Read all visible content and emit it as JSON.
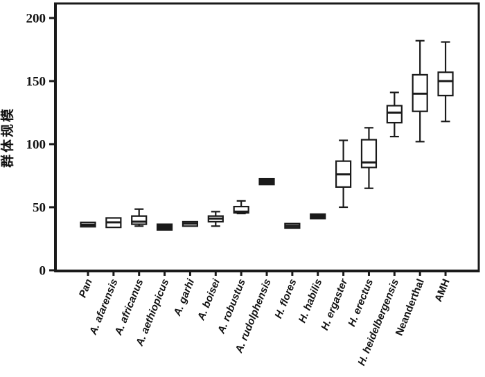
{
  "chart_data": {
    "type": "boxplot",
    "title": "",
    "xlabel": "",
    "ylabel": "群体规模",
    "ylim": [
      0,
      211
    ],
    "yticks": [
      0,
      50,
      100,
      150,
      200
    ],
    "grid": false,
    "legend": "none",
    "categories": [
      "Pan",
      "A. afarensis",
      "A. africanus",
      "A. aethiopicus",
      "A. garhi",
      "A. boisei",
      "A. robustus",
      "A. rudolphensis",
      "H. flores",
      "H. habilis",
      "H. ergaster",
      "H. erectus",
      "H. heidelbergensis",
      "Neanderthal",
      "AMH"
    ],
    "boxes": [
      {
        "label": "Pan",
        "italic": true,
        "fill": "gray",
        "low": 34.5,
        "q1": 34.5,
        "median": 36,
        "q3": 38,
        "high": 38
      },
      {
        "label": "A. afarensis",
        "italic": true,
        "fill": "white",
        "low": 34,
        "q1": 34,
        "median": 38,
        "q3": 41.5,
        "high": 41.5
      },
      {
        "label": "A. africanus",
        "italic": true,
        "fill": "white",
        "low": 35,
        "q1": 36.5,
        "median": 38.5,
        "q3": 43,
        "high": 48.5
      },
      {
        "label": "A. aethiopicus",
        "italic": true,
        "fill": "black",
        "low": 32,
        "q1": 32,
        "median": 34,
        "q3": 36.5,
        "high": 36.5
      },
      {
        "label": "A. garhi",
        "italic": true,
        "fill": "white",
        "low": 35,
        "q1": 35,
        "median": 37,
        "q3": 38.5,
        "high": 38.5
      },
      {
        "label": "A. boisei",
        "italic": true,
        "fill": "white",
        "low": 35,
        "q1": 38.5,
        "median": 41,
        "q3": 43,
        "high": 46.5
      },
      {
        "label": "A. robustus",
        "italic": true,
        "fill": "white",
        "low": 45,
        "q1": 45.5,
        "median": 46.5,
        "q3": 50.5,
        "high": 55
      },
      {
        "label": "A. rudolphensis",
        "italic": true,
        "fill": "black",
        "low": 68,
        "q1": 68,
        "median": 70,
        "q3": 72.5,
        "high": 72.5
      },
      {
        "label": "H. flores",
        "italic": true,
        "fill": "gray",
        "low": 33.5,
        "q1": 33.5,
        "median": 35,
        "q3": 37,
        "high": 37
      },
      {
        "label": "H. habilis",
        "italic": true,
        "fill": "black",
        "low": 41,
        "q1": 41,
        "median": 42.5,
        "q3": 44.5,
        "high": 44.5
      },
      {
        "label": "H. ergaster",
        "italic": true,
        "fill": "white",
        "low": 50,
        "q1": 66,
        "median": 76,
        "q3": 86.5,
        "high": 103
      },
      {
        "label": "H. erectus",
        "italic": true,
        "fill": "white",
        "low": 65,
        "q1": 81.5,
        "median": 85.5,
        "q3": 103.5,
        "high": 113
      },
      {
        "label": "H. heidelbergensis",
        "italic": true,
        "fill": "white",
        "low": 106,
        "q1": 117,
        "median": 125,
        "q3": 130.5,
        "high": 141
      },
      {
        "label": "Neanderthal",
        "italic": false,
        "fill": "white",
        "low": 102,
        "q1": 126,
        "median": 140,
        "q3": 155,
        "high": 182
      },
      {
        "label": "AMH",
        "italic": false,
        "fill": "white",
        "low": 118,
        "q1": 138.5,
        "median": 150,
        "q3": 157,
        "high": 181
      }
    ]
  },
  "colors": {
    "stroke": "#1a1a1a",
    "box_white": "#ffffff",
    "box_gray": "#8f8f8f",
    "box_black": "#1a1a1a",
    "background": "#ffffff"
  }
}
